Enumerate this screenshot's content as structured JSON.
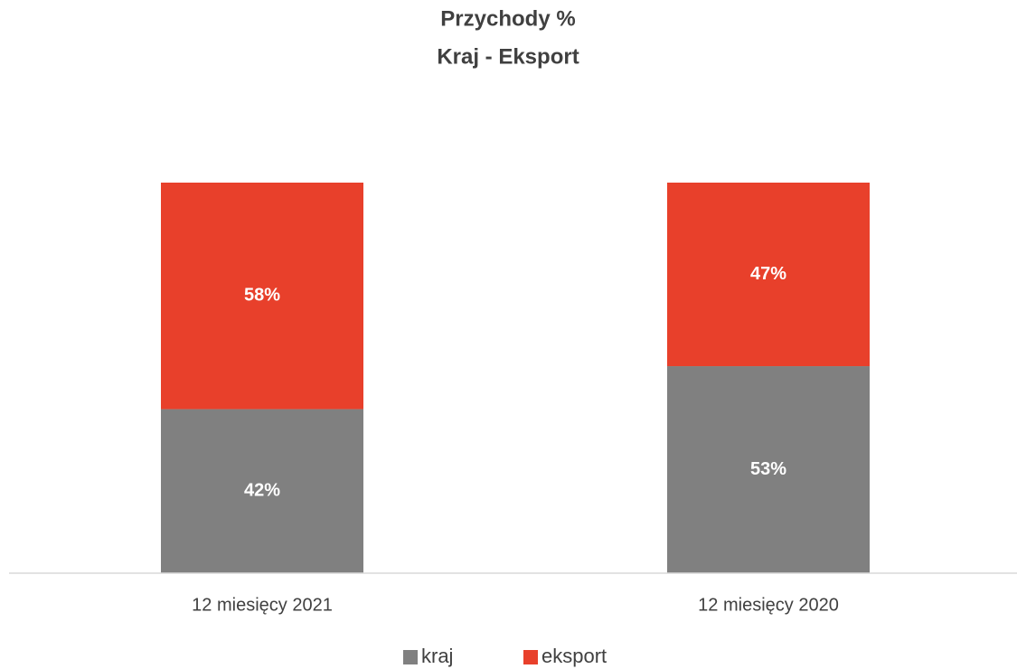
{
  "chart_data": {
    "type": "stacked_bar",
    "title": "Przychody %",
    "subtitle": "Kraj - Eksport",
    "categories": [
      "12 miesięcy 2021",
      "12 miesięcy 2020"
    ],
    "series": [
      {
        "name": "kraj",
        "color": "#808080",
        "values": [
          42,
          53
        ],
        "value_labels": [
          "42%",
          "53%"
        ]
      },
      {
        "name": "eksport",
        "color": "#e8402b",
        "values": [
          58,
          47
        ],
        "value_labels": [
          "58%",
          "47%"
        ]
      }
    ],
    "ylim": [
      0,
      100
    ]
  }
}
